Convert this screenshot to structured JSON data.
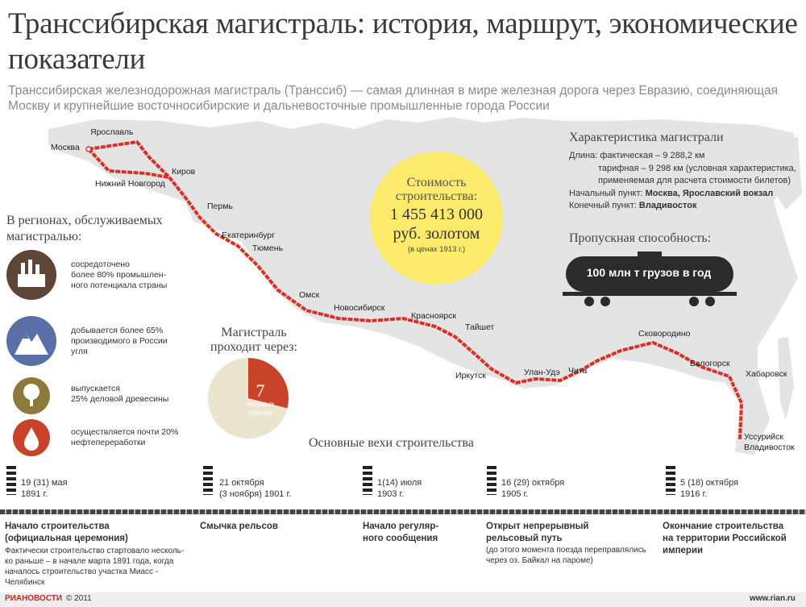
{
  "title": "Транссибирская магистраль: история, маршрут, экономические показатели",
  "subtitle": "Транссибирская железнодорожная магистраль (Транссиб) — самая длинная в мире железная дорога через Евразию, соединяющая Москву и крупнейшие восточносибирские и дальневосточные промышленные города России",
  "colors": {
    "route": "#d93025",
    "map": "#e4e4e4",
    "accent_yellow": "#fbea6c",
    "timezone_red": "#c9432a",
    "timezone_beige": "#ebe4cf",
    "tank": "#2b2b2b"
  },
  "cities": {
    "moscow": "Москва",
    "yaroslavl": "Ярославль",
    "kirov": "Киров",
    "nizhny": "Нижний Новгород",
    "perm": "Пермь",
    "ekaterinburg": "Екатеринбург",
    "tyumen": "Тюмень",
    "omsk": "Омск",
    "novosibirsk": "Новосибирск",
    "krasnoyarsk": "Красноярск",
    "taishet": "Тайшет",
    "irkutsk": "Иркутск",
    "ulanude": "Улан-Удэ",
    "chita": "Чита",
    "skovorodino": "Сковородино",
    "belogorsk": "Белогорск",
    "khabarovsk": "Хабаровск",
    "ussuriysk": "Уссурийск",
    "vladivostok": "Владивосток"
  },
  "characteristics": {
    "title": "Характеристика магистрали",
    "length_label": "Длина:",
    "length_actual": "фактическая – 9 288,2 км",
    "length_tariff": "тарифная – 9 298 км (условная характеристика,",
    "length_tariff_note": "применяемая для расчета стоимости билетов)",
    "start_label": "Начальный пункт:",
    "start_value": "Москва, Ярославский вокзал",
    "end_label": "Конечный пункт:",
    "end_value": "Владивосток"
  },
  "cost": {
    "label_line1": "Стоимость",
    "label_line2": "строительства:",
    "value_line1": "1 455 413 000",
    "value_line2": "руб. золотом",
    "note": "(в ценах 1913 г.)"
  },
  "capacity": {
    "title": "Пропускная способность:",
    "value": "100 млн т грузов в год",
    "icon": "tank-car-icon"
  },
  "regions": {
    "title_line1": "В регионах, обслуживаемых",
    "title_line2": "магистралью:",
    "items": [
      {
        "icon": "factory-icon",
        "color": "#5e4636",
        "lines": [
          "сосредоточено",
          "более 80% промышлен-",
          "ного потенциала страны"
        ]
      },
      {
        "icon": "mountain-icon",
        "color": "#5a6ea8",
        "lines": [
          "добывается более 65%",
          "производимого в России",
          "угля"
        ]
      },
      {
        "icon": "tree-icon",
        "color": "#8c7a3c",
        "lines": [
          "выпускается",
          "25% деловой древесины"
        ]
      },
      {
        "icon": "oil-drop-icon",
        "color": "#c9432a",
        "lines": [
          "осуществляется почти 20%",
          "нефтепереработки"
        ]
      }
    ]
  },
  "timezones": {
    "title_line1": "Магистраль",
    "title_line2": "проходит через:",
    "count": "7",
    "label_line1": "часовых",
    "label_line2": "поясов",
    "fraction": 0.29
  },
  "milestones": {
    "title": "Основные вехи строительства",
    "items": [
      {
        "date1": "19 (31) мая",
        "date2": "1891 г.",
        "head1": "Начало строительства",
        "head2": "(официальная церемония)",
        "note": [
          "Фактически строительство стартовало несколь-",
          "ко раньше –  в начале марта 1891 года, когда",
          "началось строительство участка Миасс -",
          "Челябинск"
        ]
      },
      {
        "date1": "21 октября",
        "date2": "(3 ноября) 1901 г.",
        "head1": "Смычка рельсов",
        "head2": "",
        "note": []
      },
      {
        "date1": "1(14) июля",
        "date2": "1903 г.",
        "head1": "Начало регуляр-",
        "head2": "ного сообщения",
        "note": []
      },
      {
        "date1": "16 (29) октября",
        "date2": "1905 г.",
        "head1": "Открыт непрерывный",
        "head2": "рельсовый путь",
        "note": [
          "(до этого момента поезда переправлялись",
          "через оз. Байкал на пароме)"
        ]
      },
      {
        "date1": "5 (18) октября",
        "date2": "1916 г.",
        "head1": "Окончание строительства",
        "head2": "на территории Российской",
        "head3": "империи",
        "note": []
      }
    ]
  },
  "footer": {
    "brand": "РИАНОВОСТИ",
    "copyright": "© 2011",
    "site": "www.rian.ru"
  }
}
